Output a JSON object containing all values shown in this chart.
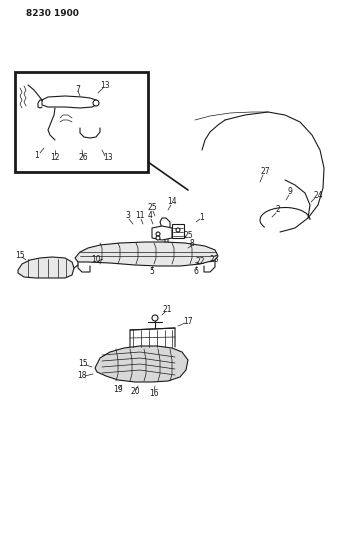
{
  "title": "8230 1900",
  "bg_color": "#ffffff",
  "fig_width": 3.4,
  "fig_height": 5.33,
  "dpi": 100,
  "lw_main": 0.8,
  "lw_thin": 0.5,
  "lw_thick": 1.2,
  "fs_label": 5.5,
  "fs_title": 6.5
}
